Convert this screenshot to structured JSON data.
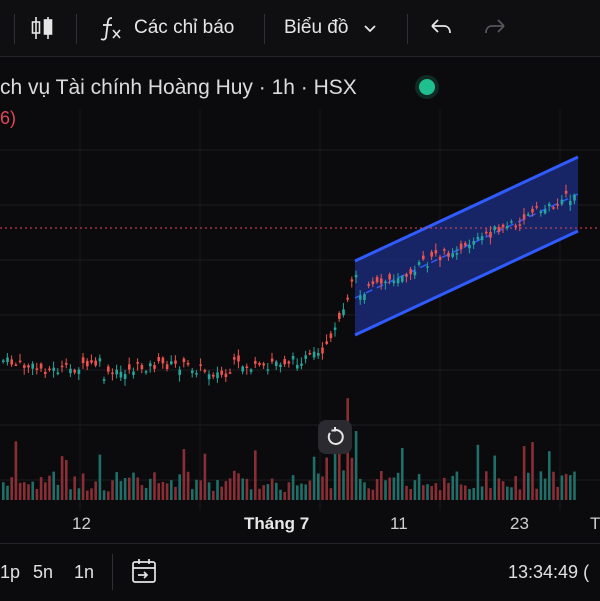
{
  "toolbar": {
    "indicators_label": "Các chỉ báo",
    "chart_type_label": "Biểu đồ",
    "icons": [
      "candlestick-icon",
      "function-icon",
      "chevron-down-icon",
      "undo-icon",
      "redo-icon"
    ]
  },
  "symbol": {
    "title": "ch vụ Tài chính Hoàng Huy · 1h · HSX",
    "change_fragment": "6)",
    "status_color": "#1fbf8f"
  },
  "x_axis": {
    "labels": [
      "12",
      "Tháng 7",
      "11",
      "23",
      "T"
    ]
  },
  "bottom_bar": {
    "ranges": [
      "1p",
      "5n",
      "1n"
    ],
    "time": "13:34:49 ("
  },
  "colors": {
    "up": "#26a69a",
    "down": "#ef5350",
    "channel": "#2f5bff",
    "price_line": "#e0465a"
  },
  "chart_data": {
    "type": "candlestick",
    "title": "",
    "xlabel": "",
    "ylabel": "",
    "annotations": [
      "parallel-channel"
    ]
  }
}
